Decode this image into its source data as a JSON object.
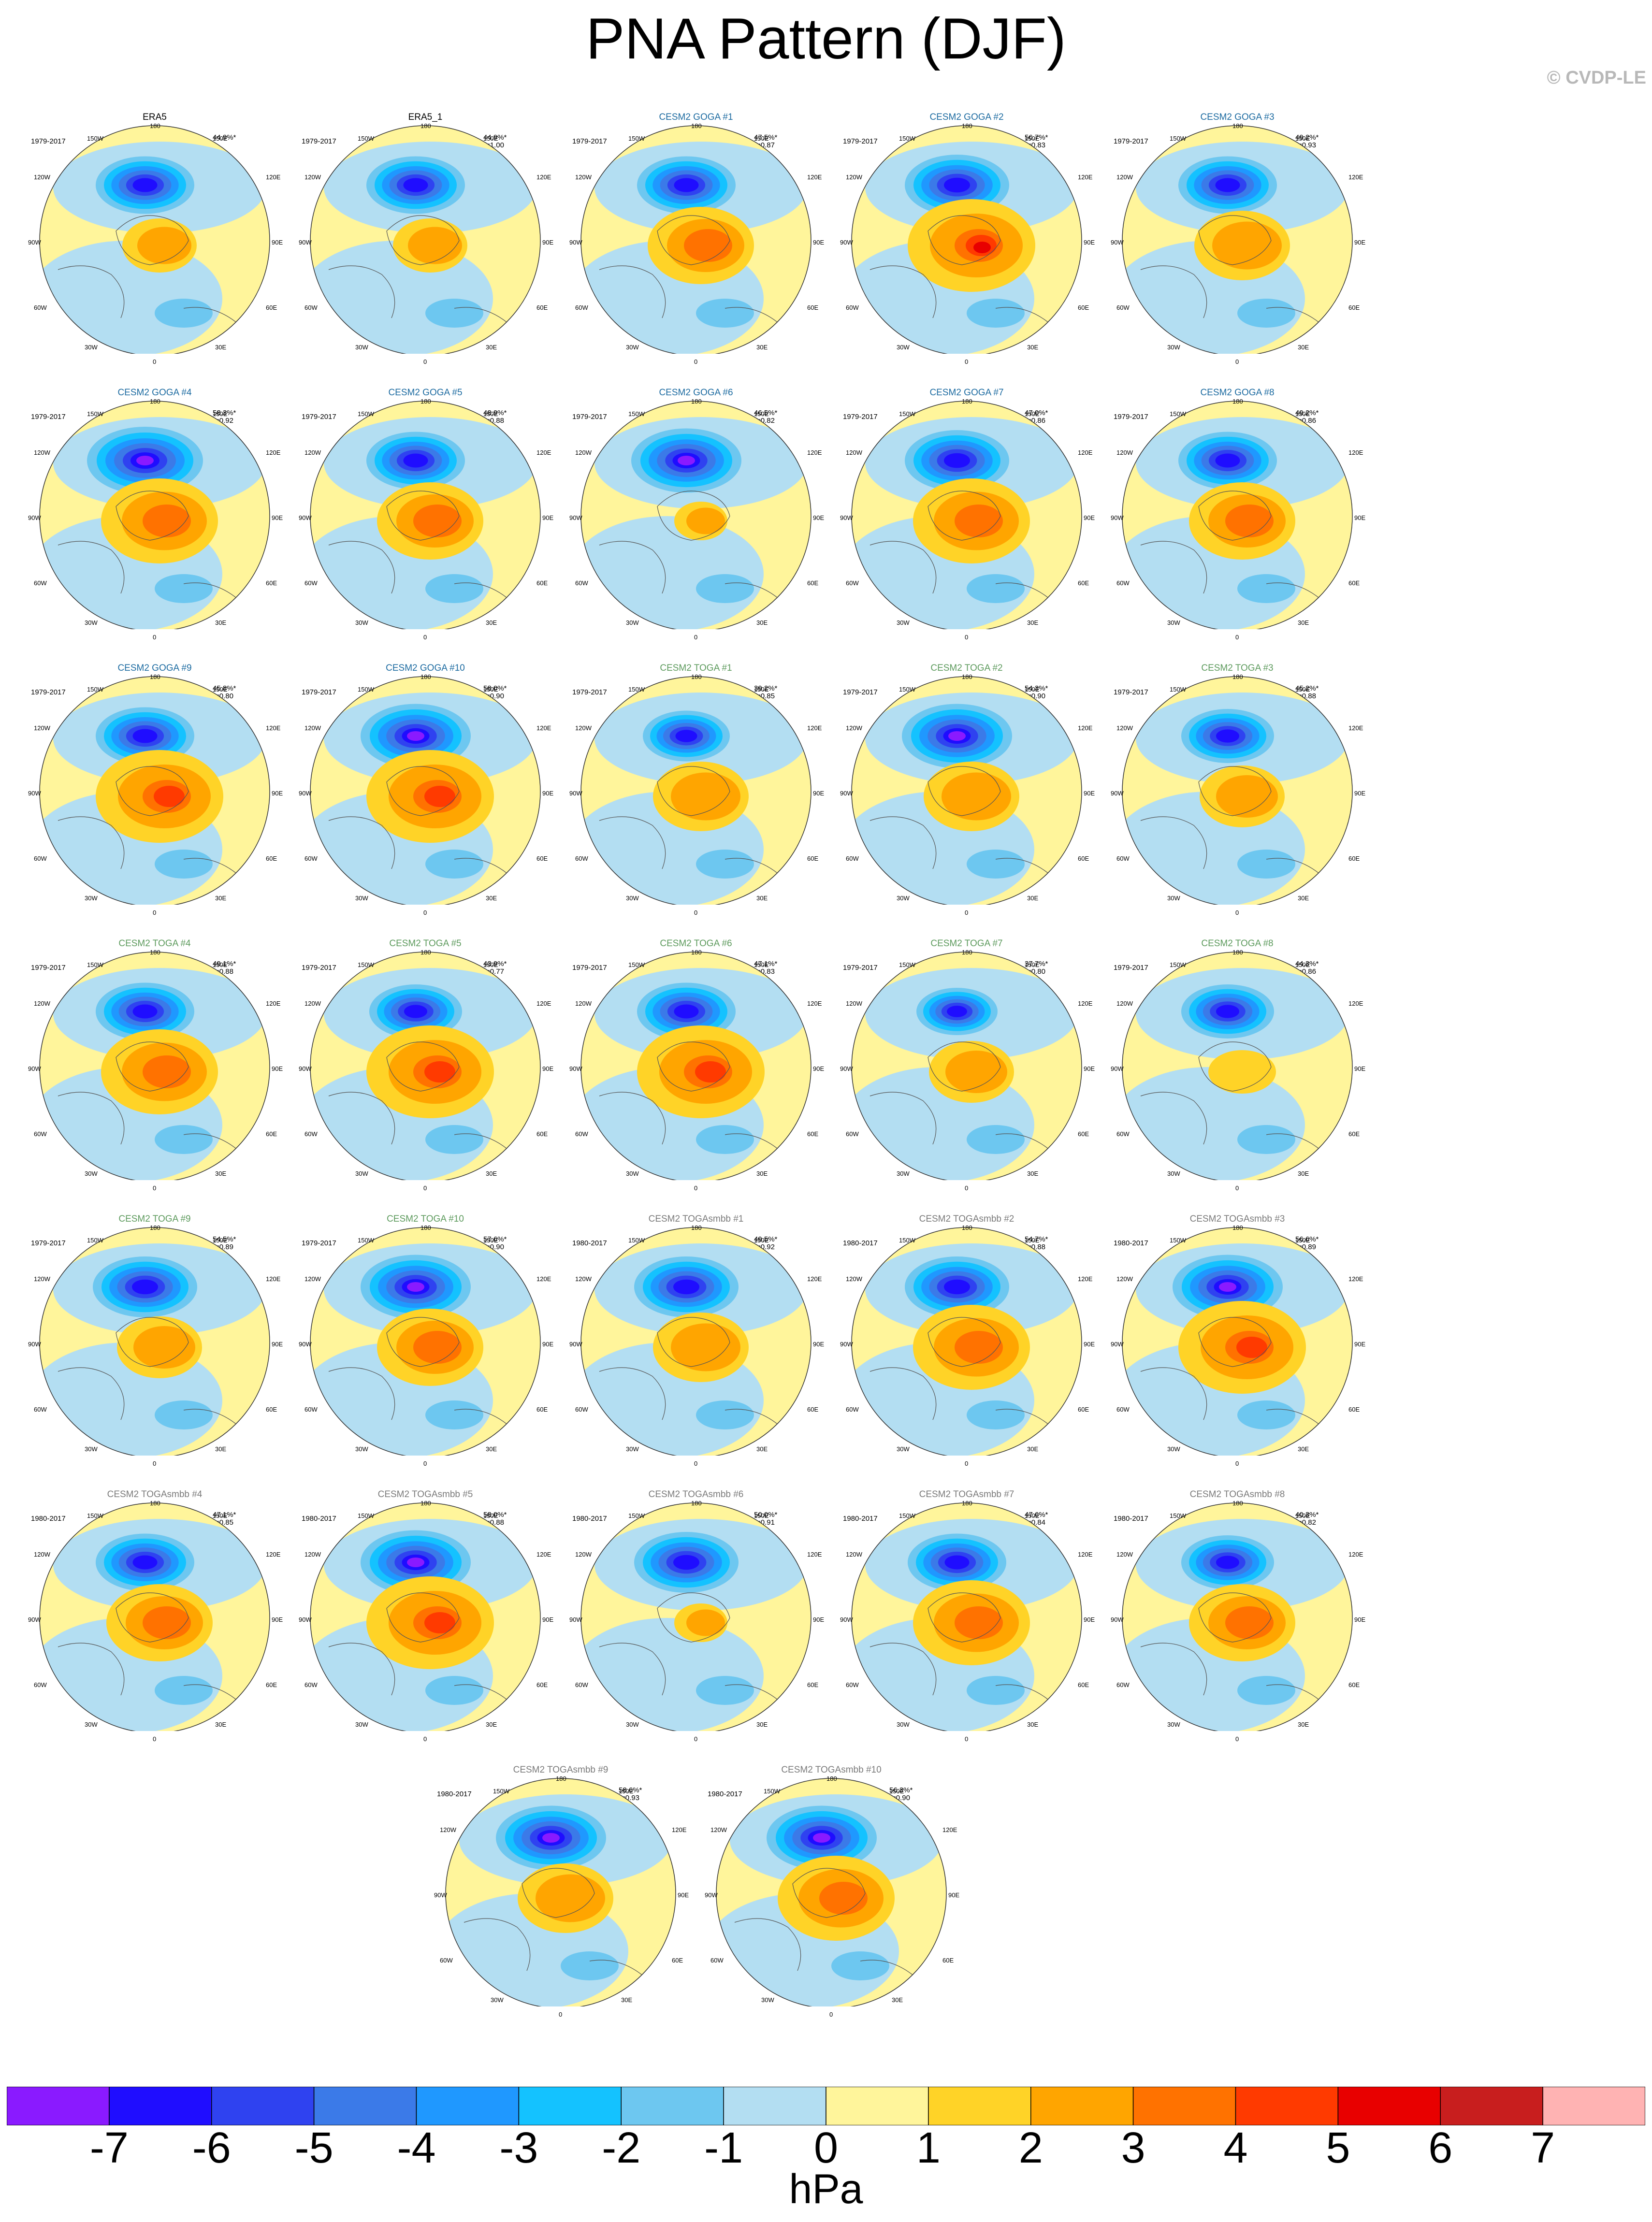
{
  "title": "PNA Pattern (DJF)",
  "copyright": "© CVDP-LE",
  "units": "hPa",
  "colorbar": {
    "labels": [
      "-7",
      "-6",
      "-5",
      "-4",
      "-3",
      "-2",
      "-1",
      "0",
      "1",
      "2",
      "3",
      "4",
      "5",
      "6",
      "7"
    ],
    "colors": [
      "#8a1aff",
      "#1f0dff",
      "#2f42f0",
      "#3b7ae8",
      "#1f98ff",
      "#14c2ff",
      "#6dc7f0",
      "#b3def2",
      "#fff59b",
      "#ffd327",
      "#ffa500",
      "#ff7200",
      "#ff3a00",
      "#e80000",
      "#c81e1e",
      "#ffb3b3"
    ]
  },
  "map_labels": {
    "top": "180",
    "ul": "150W",
    "ur": "150E",
    "l1": "120W",
    "r1": "120E",
    "l2": "90W",
    "r2": "90E",
    "l3": "60W",
    "r3": "60E",
    "bl": "30W",
    "br": "30E",
    "bottom": "0"
  },
  "title_colors": {
    "obs": "#000000",
    "goga": "#1b6aa0",
    "toga": "#5c9a5c",
    "smbb": "#7a7a7a"
  },
  "panels": [
    {
      "title": "ERA5",
      "group": "obs",
      "years": "1979-2017",
      "pct": "44.9%*",
      "r": "",
      "strength": 0.85,
      "lobe": 0.7
    },
    {
      "title": "ERA5_1",
      "group": "obs",
      "years": "1979-2017",
      "pct": "44.9%*",
      "r": "r=1.00",
      "strength": 0.85,
      "lobe": 0.7
    },
    {
      "title": "CESM2 GOGA #1",
      "group": "goga",
      "years": "1979-2017",
      "pct": "47.5%*",
      "r": "r=0.87",
      "strength": 0.85,
      "lobe": 1.0
    },
    {
      "title": "CESM2 GOGA #2",
      "group": "goga",
      "years": "1979-2017",
      "pct": "56.7%*",
      "r": "r=0.83",
      "strength": 0.9,
      "lobe": 1.5
    },
    {
      "title": "CESM2 GOGA #3",
      "group": "goga",
      "years": "1979-2017",
      "pct": "49.2%*",
      "r": "r=0.93",
      "strength": 0.85,
      "lobe": 0.9
    },
    {
      "title": "CESM2 GOGA #4",
      "group": "goga",
      "years": "1979-2017",
      "pct": "58.3%*",
      "r": "r=0.92",
      "strength": 1.0,
      "lobe": 1.1
    },
    {
      "title": "CESM2 GOGA #5",
      "group": "goga",
      "years": "1979-2017",
      "pct": "48.9%*",
      "r": "r=0.88",
      "strength": 0.85,
      "lobe": 1.0
    },
    {
      "title": "CESM2 GOGA #6",
      "group": "goga",
      "years": "1979-2017",
      "pct": "46.5%*",
      "r": "r=0.82",
      "strength": 0.95,
      "lobe": 0.5
    },
    {
      "title": "CESM2 GOGA #7",
      "group": "goga",
      "years": "1979-2017",
      "pct": "47.0%*",
      "r": "r=0.86",
      "strength": 0.9,
      "lobe": 1.1
    },
    {
      "title": "CESM2 GOGA #8",
      "group": "goga",
      "years": "1979-2017",
      "pct": "49.2%*",
      "r": "r=0.86",
      "strength": 0.85,
      "lobe": 1.0
    },
    {
      "title": "CESM2 GOGA #9",
      "group": "goga",
      "years": "1979-2017",
      "pct": "45.8%*",
      "r": "r=0.80",
      "strength": 0.85,
      "lobe": 1.3
    },
    {
      "title": "CESM2 GOGA #10",
      "group": "goga",
      "years": "1979-2017",
      "pct": "58.0%*",
      "r": "r=0.90",
      "strength": 0.95,
      "lobe": 1.3
    },
    {
      "title": "CESM2 TOGA #1",
      "group": "toga",
      "years": "1979-2017",
      "pct": "39.2%*",
      "r": "r=0.85",
      "strength": 0.75,
      "lobe": 0.9
    },
    {
      "title": "CESM2 TOGA #2",
      "group": "toga",
      "years": "1979-2017",
      "pct": "54.3%*",
      "r": "r=0.90",
      "strength": 0.95,
      "lobe": 0.9
    },
    {
      "title": "CESM2 TOGA #3",
      "group": "toga",
      "years": "1979-2017",
      "pct": "45.2%*",
      "r": "r=0.88",
      "strength": 0.8,
      "lobe": 0.8
    },
    {
      "title": "CESM2 TOGA #4",
      "group": "toga",
      "years": "1979-2017",
      "pct": "49.1%*",
      "r": "r=0.88",
      "strength": 0.85,
      "lobe": 1.1
    },
    {
      "title": "CESM2 TOGA #5",
      "group": "toga",
      "years": "1979-2017",
      "pct": "43.9%*",
      "r": "r=0.77",
      "strength": 0.8,
      "lobe": 1.2
    },
    {
      "title": "CESM2 TOGA #6",
      "group": "toga",
      "years": "1979-2017",
      "pct": "47.1%*",
      "r": "r=0.83",
      "strength": 0.85,
      "lobe": 1.2
    },
    {
      "title": "CESM2 TOGA #7",
      "group": "toga",
      "years": "1979-2017",
      "pct": "37.7%*",
      "r": "r=0.80",
      "strength": 0.7,
      "lobe": 0.8
    },
    {
      "title": "CESM2 TOGA #8",
      "group": "toga",
      "years": "1979-2017",
      "pct": "44.3%*",
      "r": "r=0.86",
      "strength": 0.8,
      "lobe": 0.3
    },
    {
      "title": "CESM2 TOGA #9",
      "group": "toga",
      "years": "1979-2017",
      "pct": "54.5%*",
      "r": "r=0.89",
      "strength": 0.9,
      "lobe": 0.8
    },
    {
      "title": "CESM2 TOGA #10",
      "group": "toga",
      "years": "1979-2017",
      "pct": "57.6%*",
      "r": "r=0.90",
      "strength": 0.95,
      "lobe": 1.0
    },
    {
      "title": "CESM2 TOGAsmbb #1",
      "group": "smbb",
      "years": "1980-2017",
      "pct": "49.5%*",
      "r": "r=0.92",
      "strength": 0.9,
      "lobe": 0.9
    },
    {
      "title": "CESM2 TOGAsmbb #2",
      "group": "smbb",
      "years": "1980-2017",
      "pct": "54.7%*",
      "r": "r=0.88",
      "strength": 0.9,
      "lobe": 1.1
    },
    {
      "title": "CESM2 TOGAsmbb #3",
      "group": "smbb",
      "years": "1980-2017",
      "pct": "56.6%*",
      "r": "r=0.89",
      "strength": 0.95,
      "lobe": 1.3
    },
    {
      "title": "CESM2 TOGAsmbb #4",
      "group": "smbb",
      "years": "1980-2017",
      "pct": "47.1%*",
      "r": "r=0.85",
      "strength": 0.85,
      "lobe": 1.0
    },
    {
      "title": "CESM2 TOGAsmbb #5",
      "group": "smbb",
      "years": "1980-2017",
      "pct": "58.0%*",
      "r": "r=0.88",
      "strength": 0.95,
      "lobe": 1.2
    },
    {
      "title": "CESM2 TOGAsmbb #6",
      "group": "smbb",
      "years": "1980-2017",
      "pct": "50.0%*",
      "r": "r=0.91",
      "strength": 0.9,
      "lobe": 0.5
    },
    {
      "title": "CESM2 TOGAsmbb #7",
      "group": "smbb",
      "years": "1980-2017",
      "pct": "47.6%*",
      "r": "r=0.84",
      "strength": 0.85,
      "lobe": 1.1
    },
    {
      "title": "CESM2 TOGAsmbb #8",
      "group": "smbb",
      "years": "1980-2017",
      "pct": "40.3%*",
      "r": "r=0.82",
      "strength": 0.8,
      "lobe": 1.0
    },
    {
      "title": "CESM2 TOGAsmbb #9",
      "group": "smbb",
      "years": "1980-2017",
      "pct": "58.6%*",
      "r": "r=0.93",
      "strength": 0.95,
      "lobe": 0.9
    },
    {
      "title": "CESM2 TOGAsmbb #10",
      "group": "smbb",
      "years": "1980-2017",
      "pct": "56.3%*",
      "r": "r=0.90",
      "strength": 0.95,
      "lobe": 1.1
    }
  ]
}
